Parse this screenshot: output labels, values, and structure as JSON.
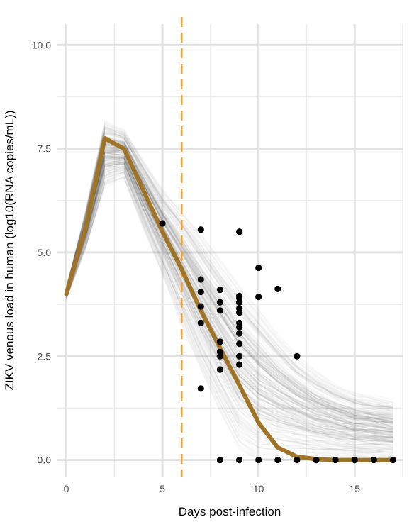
{
  "chart_data": {
    "type": "line",
    "title": "",
    "xlabel": "Days post-infection",
    "ylabel": "ZIKV venous load in human (log10(RNA copies/mL))",
    "xlim": [
      -0.5,
      17.5
    ],
    "ylim": [
      -0.4,
      10.5
    ],
    "x_ticks": [
      0,
      5,
      10,
      15
    ],
    "x_tick_labels": [
      "0",
      "5",
      "10",
      "15"
    ],
    "y_ticks": [
      0,
      2.5,
      5,
      7.5,
      10
    ],
    "y_tick_labels": [
      "0.0",
      "2.5",
      "5.0",
      "7.5",
      "10.0"
    ],
    "grid": true,
    "legend": "none",
    "series": [
      {
        "kind": "median-trajectory",
        "color": "#a07426",
        "x": [
          0,
          1,
          2,
          3,
          4,
          5,
          6,
          7,
          8,
          9,
          10,
          11,
          12,
          13,
          14,
          15,
          16,
          17
        ],
        "y": [
          4.0,
          5.6,
          7.75,
          7.5,
          6.5,
          5.5,
          4.6,
          3.6,
          2.7,
          1.8,
          0.9,
          0.3,
          0.08,
          0.02,
          0.0,
          0.0,
          0.0,
          0.0
        ]
      }
    ],
    "simulation_band": {
      "color": "#2b2b2b",
      "x": [
        0,
        1,
        2,
        3,
        4,
        5,
        6,
        7,
        8,
        9,
        10,
        11,
        12,
        13,
        14,
        15,
        16,
        17
      ],
      "upper": [
        4.15,
        6.0,
        8.15,
        7.95,
        7.2,
        6.5,
        6.0,
        5.4,
        4.8,
        4.2,
        3.6,
        3.0,
        2.5,
        2.1,
        1.8,
        1.6,
        1.5,
        1.4
      ],
      "lower": [
        3.9,
        5.1,
        6.6,
        6.8,
        5.6,
        4.5,
        3.3,
        2.2,
        1.2,
        0.3,
        0.0,
        0.0,
        0.0,
        0.0,
        0.0,
        0.0,
        0.0,
        0.0
      ]
    },
    "observations": {
      "color": "#000000",
      "x": [
        5,
        7,
        7,
        7,
        7,
        7,
        7,
        8,
        8,
        8,
        8,
        8,
        8,
        8,
        8,
        9,
        9,
        9,
        9,
        9,
        9,
        9,
        9,
        9,
        9,
        9,
        9,
        9,
        10,
        10,
        10,
        11,
        11,
        12,
        12,
        13,
        14,
        15,
        16,
        17
      ],
      "y": [
        5.7,
        5.55,
        4.35,
        4.05,
        3.7,
        3.3,
        1.72,
        4.1,
        3.8,
        3.6,
        2.85,
        2.6,
        2.5,
        2.18,
        0.0,
        5.5,
        3.95,
        3.8,
        3.65,
        3.3,
        3.2,
        3.05,
        2.8,
        2.5,
        2.3,
        0.0,
        3.9,
        3.55,
        4.63,
        3.93,
        0.0,
        4.12,
        0.0,
        2.5,
        0.0,
        0.0,
        0.0,
        0.0,
        0.0,
        0.0
      ]
    },
    "reference_line": {
      "x": 6,
      "color": "#f0a030",
      "style": "dashed"
    }
  }
}
